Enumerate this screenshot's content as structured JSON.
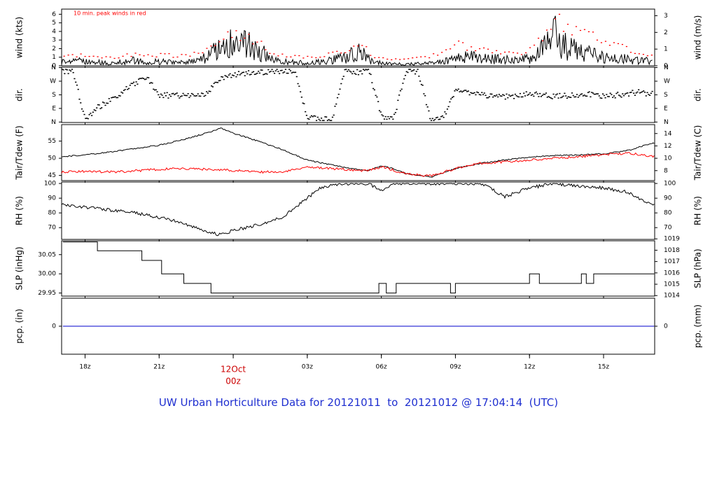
{
  "footer_title": "UW Urban Horticulture Data for 20121011  to  20121012 @ 17:04:14  (UTC)",
  "colors": {
    "axis": "#000000",
    "peak": "#ff0000",
    "dew": "#ff0000",
    "precip": "#0000cc",
    "title": "#1f2fd0",
    "date": "#cc0000"
  },
  "time_axis": {
    "ticks": [
      "18z",
      "21z",
      "00z",
      "03z",
      "06z",
      "09z",
      "12z",
      "15z"
    ],
    "tick_hours": [
      18,
      21,
      24,
      27,
      30,
      33,
      36,
      39
    ],
    "x_range_hours": [
      17.05,
      41.07
    ],
    "date_label_line1": "12Oct",
    "date_label_line2": "00z"
  },
  "chart_data": [
    {
      "type": "line",
      "ylabel": "wind (kts)",
      "y2label": "wind (m/s)",
      "annotation": "10 min. peak winds in red",
      "ylim": [
        0,
        6.6
      ],
      "yticks": [
        "0",
        "1",
        "2",
        "3",
        "4",
        "5",
        "6"
      ],
      "y2ticks": [
        "0",
        "1",
        "2",
        "3"
      ],
      "series": [
        {
          "name": "wind",
          "x": [
            17.1,
            18,
            19,
            20,
            20.5,
            21,
            22,
            22.8,
            23.5,
            24,
            24.5,
            25,
            25.5,
            26,
            26.5,
            27,
            28,
            28.7,
            29.2,
            29.6,
            30,
            30.5,
            31,
            32,
            32.8,
            33,
            33.5,
            34,
            35,
            35.5,
            36,
            36.5,
            37,
            37.5,
            38,
            38.5,
            39,
            39.5,
            40,
            40.5,
            41
          ],
          "y": [
            0.6,
            0.5,
            0.3,
            0.6,
            0.4,
            0.5,
            0.4,
            0.8,
            2.3,
            2.6,
            2.4,
            1.9,
            0.7,
            0.5,
            0.4,
            0.3,
            0.6,
            1.2,
            1.5,
            0.5,
            0.3,
            0.2,
            0.2,
            0.3,
            0.6,
            0.8,
            1.0,
            0.9,
            0.7,
            0.6,
            0.8,
            1.9,
            3.4,
            2.2,
            1.5,
            1.3,
            1.0,
            0.9,
            0.7,
            0.6,
            0.5
          ]
        },
        {
          "name": "10 min. peak winds",
          "x": [
            17.1,
            18,
            19,
            20,
            20.5,
            21,
            22,
            22.8,
            23.5,
            24,
            24.5,
            25,
            25.5,
            26,
            26.5,
            27,
            28,
            28.7,
            29.2,
            29.6,
            30,
            30.5,
            31,
            32,
            32.8,
            33,
            33.5,
            34,
            35,
            35.5,
            36,
            36.5,
            37,
            37.5,
            38,
            38.5,
            39,
            39.5,
            40,
            40.5,
            41
          ],
          "y": [
            1.3,
            1.1,
            0.9,
            1.3,
            1.1,
            1.2,
            1.1,
            1.6,
            3.3,
            3.5,
            3.2,
            2.6,
            1.6,
            1.2,
            1.1,
            0.9,
            1.3,
            1.8,
            2.4,
            1.2,
            0.9,
            0.7,
            0.8,
            1.1,
            1.7,
            2.4,
            2.1,
            1.9,
            1.6,
            1.4,
            1.8,
            2.9,
            5.3,
            4.5,
            3.9,
            3.3,
            3.0,
            2.6,
            1.7,
            1.5,
            1.2
          ]
        }
      ]
    },
    {
      "type": "scatter",
      "ylabel": "dir.",
      "y2label": "dir.",
      "yticks": [
        "N",
        "W",
        "S",
        "E",
        "N"
      ],
      "ylim": [
        0,
        360
      ],
      "series": [
        {
          "name": "direction",
          "x": [
            17.1,
            17.5,
            18,
            18.5,
            19,
            19.5,
            20,
            20.5,
            21,
            21.5,
            22,
            22.5,
            23,
            23.5,
            24,
            24.5,
            25,
            25.5,
            26,
            26.5,
            27,
            27.5,
            28,
            28.5,
            29,
            29.5,
            30,
            30.5,
            31,
            31.5,
            32,
            32.5,
            33,
            33.5,
            34,
            34.5,
            35,
            35.5,
            36,
            36.5,
            37,
            37.5,
            38,
            38.5,
            39,
            39.5,
            40,
            40.5,
            41
          ],
          "y": [
            345,
            350,
            10,
            90,
            140,
            200,
            260,
            310,
            170,
            180,
            175,
            170,
            200,
            300,
            325,
            330,
            335,
            340,
            350,
            355,
            20,
            10,
            5,
            350,
            340,
            355,
            30,
            15,
            350,
            345,
            5,
            20,
            210,
            200,
            180,
            175,
            170,
            175,
            185,
            180,
            170,
            175,
            180,
            185,
            175,
            180,
            190,
            200,
            185
          ]
        }
      ]
    },
    {
      "type": "line",
      "ylabel": "Tair/Tdew (F)",
      "y2label": "Tair/Tdew (C)",
      "ylim": [
        43.5,
        59.8
      ],
      "yticks": [
        "45",
        "50",
        "55"
      ],
      "y2ticks": [
        "8",
        "10",
        "12",
        "14"
      ],
      "series": [
        {
          "name": "Tair",
          "x": [
            17.1,
            18,
            19,
            20,
            21,
            22,
            23,
            23.5,
            24,
            25,
            26,
            27,
            28,
            29,
            29.5,
            30,
            30.5,
            31,
            32,
            33,
            34,
            35,
            36,
            37,
            38,
            39,
            40,
            41
          ],
          "y": [
            50.5,
            51.0,
            51.8,
            52.8,
            53.8,
            55.5,
            57.5,
            58.8,
            57.3,
            55.0,
            52.5,
            49.5,
            48.0,
            46.8,
            46.5,
            47.8,
            47.0,
            45.5,
            44.5,
            47.0,
            48.5,
            49.5,
            50.3,
            50.8,
            51.0,
            51.3,
            52.3,
            54.5
          ]
        },
        {
          "name": "Tdew",
          "x": [
            17.1,
            18,
            19,
            20,
            21,
            22,
            23,
            24,
            25,
            26,
            27,
            28,
            29,
            29.5,
            30,
            30.5,
            31,
            32,
            33,
            34,
            35,
            36,
            37,
            38,
            39,
            40,
            41
          ],
          "y": [
            46.0,
            46.2,
            46.0,
            46.3,
            46.8,
            47.0,
            46.7,
            46.5,
            46.0,
            46.0,
            47.5,
            47.0,
            46.5,
            46.5,
            47.5,
            46.5,
            45.5,
            44.8,
            47.0,
            48.5,
            49.0,
            49.5,
            50.0,
            50.5,
            51.0,
            51.5,
            50.5
          ]
        }
      ]
    },
    {
      "type": "line",
      "ylabel": "RH (%)",
      "y2label": "RH (%)",
      "ylim": [
        62,
        101
      ],
      "yticks": [
        "70",
        "80",
        "90",
        "100"
      ],
      "y2ticks": [
        "70",
        "80",
        "90",
        "100"
      ],
      "series": [
        {
          "name": "RH",
          "x": [
            17.1,
            18,
            19,
            20,
            21,
            22,
            23,
            23.5,
            24,
            25,
            26,
            27,
            27.5,
            28,
            29,
            29.5,
            30,
            30.5,
            31,
            32,
            33,
            34,
            34.5,
            35,
            36,
            37,
            38,
            39,
            40,
            41
          ],
          "y": [
            86,
            84,
            82,
            80,
            77,
            73,
            67,
            65,
            68,
            72,
            77,
            90,
            97,
            99,
            100,
            100,
            95,
            100,
            100,
            100,
            100,
            100,
            96,
            91,
            97,
            100,
            98,
            97,
            94,
            85
          ]
        }
      ]
    },
    {
      "type": "line",
      "ylabel": "SLP (inHg)",
      "y2label": "SLP (hPa)",
      "ylim": [
        29.942,
        30.086
      ],
      "yticks": [
        "29.95",
        "30.00",
        "30.05"
      ],
      "y2ticks": [
        "1014",
        "1015",
        "1016",
        "1017",
        "1018",
        "1019"
      ],
      "series": [
        {
          "name": "SLP",
          "x": [
            17.1,
            18.5,
            18.5,
            20.3,
            20.3,
            21.1,
            21.1,
            22.0,
            22.0,
            23.1,
            23.1,
            29.9,
            29.9,
            30.2,
            30.2,
            30.6,
            30.6,
            32.8,
            32.8,
            33.0,
            33.0,
            36.0,
            36.0,
            36.4,
            36.4,
            38.1,
            38.1,
            38.3,
            38.3,
            38.6,
            38.6,
            41.05
          ],
          "y": [
            30.083,
            30.083,
            30.06,
            30.06,
            30.035,
            30.035,
            30.0,
            30.0,
            29.975,
            29.975,
            29.95,
            29.95,
            29.975,
            29.975,
            29.95,
            29.95,
            29.975,
            29.975,
            29.95,
            29.95,
            29.975,
            29.975,
            30.0,
            30.0,
            29.975,
            29.975,
            30.0,
            30.0,
            29.975,
            29.975,
            30.0,
            30.0
          ]
        }
      ]
    },
    {
      "type": "line",
      "ylabel": "pcp. (in)",
      "y2label": "pcp. (mm)",
      "ylim": [
        -1,
        1
      ],
      "yticks": [
        "0"
      ],
      "y2ticks": [
        "0"
      ],
      "series": [
        {
          "name": "precip",
          "x": [
            17.1,
            41.05
          ],
          "y": [
            0,
            0
          ]
        }
      ]
    }
  ]
}
